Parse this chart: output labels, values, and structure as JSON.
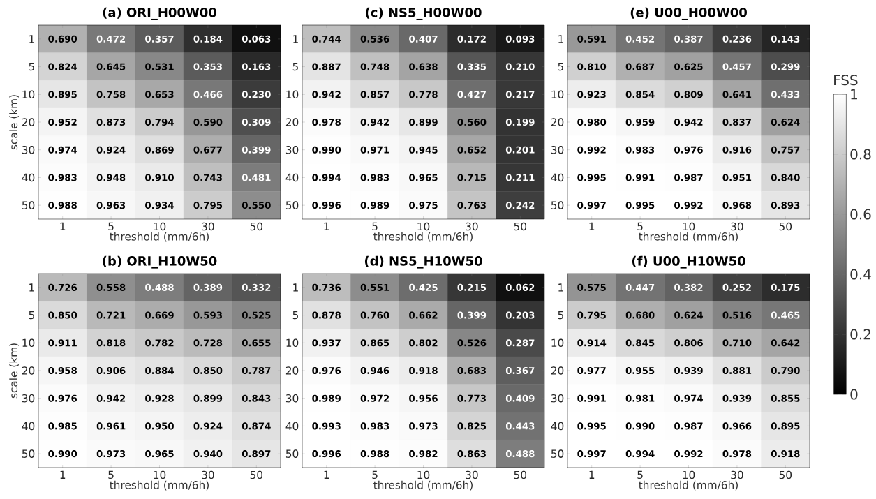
{
  "chart_data": [
    {
      "type": "heatmap",
      "title": "(a) ORI_H00W00",
      "xlabel": "threshold (mm/6h)",
      "ylabel": "scale (km)",
      "categories": [
        "1",
        "5",
        "10",
        "30",
        "50"
      ],
      "y_categories": [
        "1",
        "5",
        "10",
        "20",
        "30",
        "40",
        "50"
      ],
      "cells": [
        [
          0.69,
          0.472,
          0.357,
          0.184,
          0.063
        ],
        [
          0.824,
          0.645,
          0.531,
          0.353,
          0.163
        ],
        [
          0.895,
          0.758,
          0.653,
          0.466,
          0.23
        ],
        [
          0.952,
          0.873,
          0.794,
          0.59,
          0.309
        ],
        [
          0.974,
          0.924,
          0.869,
          0.677,
          0.399
        ],
        [
          0.983,
          0.948,
          0.91,
          0.743,
          0.481
        ],
        [
          0.988,
          0.963,
          0.934,
          0.795,
          0.55
        ]
      ],
      "cell_labels": [
        [
          "0.690",
          "0.472",
          "0.357",
          "0.184",
          "0.063"
        ],
        [
          "0.824",
          "0.645",
          "0.531",
          "0.353",
          "0.163"
        ],
        [
          "0.895",
          "0.758",
          "0.653",
          "0.466",
          "0.230"
        ],
        [
          "0.952",
          "0.873",
          "0.794",
          "0.590",
          "0.309"
        ],
        [
          "0.974",
          "0.924",
          "0.869",
          "0.677",
          "0.399"
        ],
        [
          "0.983",
          "0.948",
          "0.910",
          "0.743",
          "0.481"
        ],
        [
          "0.988",
          "0.963",
          "0.934",
          "0.795",
          "0.550"
        ]
      ]
    },
    {
      "type": "heatmap",
      "title": "(c) NS5_H00W00",
      "xlabel": "threshold (mm/6h)",
      "categories": [
        "1",
        "5",
        "10",
        "30",
        "50"
      ],
      "y_categories": [
        "1",
        "5",
        "10",
        "20",
        "30",
        "40",
        "50"
      ],
      "cells": [
        [
          0.744,
          0.536,
          0.407,
          0.172,
          0.093
        ],
        [
          0.887,
          0.748,
          0.638,
          0.335,
          0.21
        ],
        [
          0.942,
          0.857,
          0.778,
          0.427,
          0.217
        ],
        [
          0.978,
          0.942,
          0.899,
          0.56,
          0.199
        ],
        [
          0.99,
          0.971,
          0.945,
          0.652,
          0.201
        ],
        [
          0.994,
          0.983,
          0.965,
          0.715,
          0.211
        ],
        [
          0.996,
          0.989,
          0.975,
          0.763,
          0.242
        ]
      ],
      "cell_labels": [
        [
          "0.744",
          "0.536",
          "0.407",
          "0.172",
          "0.093"
        ],
        [
          "0.887",
          "0.748",
          "0.638",
          "0.335",
          "0.210"
        ],
        [
          "0.942",
          "0.857",
          "0.778",
          "0.427",
          "0.217"
        ],
        [
          "0.978",
          "0.942",
          "0.899",
          "0.560",
          "0.199"
        ],
        [
          "0.990",
          "0.971",
          "0.945",
          "0.652",
          "0.201"
        ],
        [
          "0.994",
          "0.983",
          "0.965",
          "0.715",
          "0.211"
        ],
        [
          "0.996",
          "0.989",
          "0.975",
          "0.763",
          "0.242"
        ]
      ]
    },
    {
      "type": "heatmap",
      "title": "(e) U00_H00W00",
      "xlabel": "threshold (mm/6h)",
      "categories": [
        "1",
        "5",
        "10",
        "30",
        "50"
      ],
      "y_categories": [
        "1",
        "5",
        "10",
        "20",
        "30",
        "40",
        "50"
      ],
      "clim": [
        0,
        1
      ],
      "clabel": "FSS",
      "cticks": [
        0,
        0.2,
        0.4,
        0.6,
        0.8,
        1
      ],
      "cells": [
        [
          0.591,
          0.452,
          0.387,
          0.236,
          0.143
        ],
        [
          0.81,
          0.687,
          0.625,
          0.457,
          0.299
        ],
        [
          0.923,
          0.854,
          0.809,
          0.641,
          0.433
        ],
        [
          0.98,
          0.959,
          0.942,
          0.837,
          0.624
        ],
        [
          0.992,
          0.983,
          0.976,
          0.916,
          0.757
        ],
        [
          0.995,
          0.991,
          0.987,
          0.951,
          0.84
        ],
        [
          0.997,
          0.995,
          0.992,
          0.968,
          0.893
        ]
      ],
      "cell_labels": [
        [
          "0.591",
          "0.452",
          "0.387",
          "0.236",
          "0.143"
        ],
        [
          "0.810",
          "0.687",
          "0.625",
          "0.457",
          "0.299"
        ],
        [
          "0.923",
          "0.854",
          "0.809",
          "0.641",
          "0.433"
        ],
        [
          "0.980",
          "0.959",
          "0.942",
          "0.837",
          "0.624"
        ],
        [
          "0.992",
          "0.983",
          "0.976",
          "0.916",
          "0.757"
        ],
        [
          "0.995",
          "0.991",
          "0.987",
          "0.951",
          "0.840"
        ],
        [
          "0.997",
          "0.995",
          "0.992",
          "0.968",
          "0.893"
        ]
      ]
    },
    {
      "type": "heatmap",
      "title": "(b) ORI_H10W50",
      "xlabel": "threshold (mm/6h)",
      "ylabel": "scale (km)",
      "categories": [
        "1",
        "5",
        "10",
        "30",
        "50"
      ],
      "y_categories": [
        "1",
        "5",
        "10",
        "20",
        "30",
        "40",
        "50"
      ],
      "cells": [
        [
          0.726,
          0.558,
          0.488,
          0.389,
          0.332
        ],
        [
          0.85,
          0.721,
          0.669,
          0.593,
          0.525
        ],
        [
          0.911,
          0.818,
          0.782,
          0.728,
          0.655
        ],
        [
          0.958,
          0.906,
          0.884,
          0.85,
          0.787
        ],
        [
          0.976,
          0.942,
          0.928,
          0.899,
          0.843
        ],
        [
          0.985,
          0.961,
          0.95,
          0.924,
          0.874
        ],
        [
          0.99,
          0.973,
          0.965,
          0.94,
          0.897
        ]
      ],
      "cell_labels": [
        [
          "0.726",
          "0.558",
          "0.488",
          "0.389",
          "0.332"
        ],
        [
          "0.850",
          "0.721",
          "0.669",
          "0.593",
          "0.525"
        ],
        [
          "0.911",
          "0.818",
          "0.782",
          "0.728",
          "0.655"
        ],
        [
          "0.958",
          "0.906",
          "0.884",
          "0.850",
          "0.787"
        ],
        [
          "0.976",
          "0.942",
          "0.928",
          "0.899",
          "0.843"
        ],
        [
          "0.985",
          "0.961",
          "0.950",
          "0.924",
          "0.874"
        ],
        [
          "0.990",
          "0.973",
          "0.965",
          "0.940",
          "0.897"
        ]
      ]
    },
    {
      "type": "heatmap",
      "title": "(d) NS5_H10W50",
      "xlabel": "threshold (mm/6h)",
      "categories": [
        "1",
        "5",
        "10",
        "30",
        "50"
      ],
      "y_categories": [
        "1",
        "5",
        "10",
        "20",
        "30",
        "40",
        "50"
      ],
      "cells": [
        [
          0.736,
          0.551,
          0.425,
          0.215,
          0.062
        ],
        [
          0.878,
          0.76,
          0.662,
          0.399,
          0.203
        ],
        [
          0.937,
          0.865,
          0.802,
          0.526,
          0.287
        ],
        [
          0.976,
          0.946,
          0.918,
          0.683,
          0.367
        ],
        [
          0.989,
          0.972,
          0.956,
          0.773,
          0.409
        ],
        [
          0.993,
          0.983,
          0.973,
          0.825,
          0.443
        ],
        [
          0.996,
          0.988,
          0.982,
          0.863,
          0.488
        ]
      ],
      "cell_labels": [
        [
          "0.736",
          "0.551",
          "0.425",
          "0.215",
          "0.062"
        ],
        [
          "0.878",
          "0.760",
          "0.662",
          "0.399",
          "0.203"
        ],
        [
          "0.937",
          "0.865",
          "0.802",
          "0.526",
          "0.287"
        ],
        [
          "0.976",
          "0.946",
          "0.918",
          "0.683",
          "0.367"
        ],
        [
          "0.989",
          "0.972",
          "0.956",
          "0.773",
          "0.409"
        ],
        [
          "0.993",
          "0.983",
          "0.973",
          "0.825",
          "0.443"
        ],
        [
          "0.996",
          "0.988",
          "0.982",
          "0.863",
          "0.488"
        ]
      ]
    },
    {
      "type": "heatmap",
      "title": "(f) U00_H10W50",
      "xlabel": "threshold (mm/6h)",
      "categories": [
        "1",
        "5",
        "10",
        "30",
        "50"
      ],
      "y_categories": [
        "1",
        "5",
        "10",
        "20",
        "30",
        "40",
        "50"
      ],
      "cells": [
        [
          0.575,
          0.447,
          0.382,
          0.252,
          0.175
        ],
        [
          0.795,
          0.68,
          0.624,
          0.516,
          0.465
        ],
        [
          0.914,
          0.845,
          0.806,
          0.71,
          0.642
        ],
        [
          0.977,
          0.955,
          0.939,
          0.881,
          0.79
        ],
        [
          0.991,
          0.981,
          0.974,
          0.939,
          0.855
        ],
        [
          0.995,
          0.99,
          0.987,
          0.966,
          0.895
        ],
        [
          0.997,
          0.994,
          0.992,
          0.978,
          0.918
        ]
      ],
      "cell_labels": [
        [
          "0.575",
          "0.447",
          "0.382",
          "0.252",
          "0.175"
        ],
        [
          "0.795",
          "0.680",
          "0.624",
          "0.516",
          "0.465"
        ],
        [
          "0.914",
          "0.845",
          "0.806",
          "0.710",
          "0.642"
        ],
        [
          "0.977",
          "0.955",
          "0.939",
          "0.881",
          "0.790"
        ],
        [
          "0.991",
          "0.981",
          "0.974",
          "0.939",
          "0.855"
        ],
        [
          "0.995",
          "0.990",
          "0.987",
          "0.966",
          "0.895"
        ],
        [
          "0.997",
          "0.994",
          "0.992",
          "0.978",
          "0.918"
        ]
      ]
    }
  ]
}
